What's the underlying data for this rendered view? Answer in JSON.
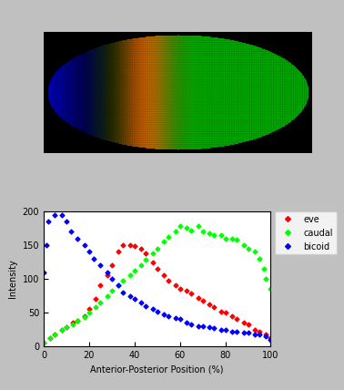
{
  "chart_data": {
    "type": "scatter",
    "x_label": "Anterior-Posterior Position (%)",
    "y_label": "Intensity",
    "xlim": [
      0,
      100
    ],
    "xticks": [
      0,
      20,
      40,
      60,
      80,
      100
    ],
    "ylim": [
      0,
      200
    ],
    "yticks": [
      0,
      50,
      100,
      150,
      200
    ],
    "legend": "upper right",
    "marker": "diamond",
    "series": [
      {
        "name": "eve",
        "color": "#ff0000",
        "x": [
          0,
          3,
          5,
          8,
          10,
          13,
          15,
          18,
          20,
          23,
          25,
          28,
          30,
          33,
          35,
          38,
          40,
          43,
          45,
          48,
          50,
          53,
          55,
          58,
          60,
          63,
          65,
          68,
          70,
          73,
          75,
          78,
          80,
          83,
          85,
          88,
          90,
          93,
          95,
          98,
          100
        ],
        "values": [
          5,
          12,
          18,
          25,
          28,
          35,
          38,
          45,
          55,
          70,
          90,
          105,
          120,
          140,
          150,
          150,
          148,
          145,
          138,
          125,
          115,
          105,
          98,
          90,
          85,
          82,
          78,
          72,
          68,
          62,
          58,
          52,
          50,
          45,
          40,
          35,
          32,
          25,
          22,
          18,
          12
        ]
      },
      {
        "name": "caudal",
        "color": "#00ff00",
        "x": [
          0,
          3,
          5,
          8,
          10,
          13,
          15,
          18,
          20,
          23,
          25,
          28,
          30,
          33,
          35,
          38,
          40,
          43,
          45,
          48,
          50,
          53,
          55,
          58,
          60,
          63,
          65,
          68,
          70,
          73,
          75,
          78,
          80,
          83,
          85,
          88,
          90,
          93,
          95,
          97,
          98,
          100
        ],
        "values": [
          5,
          12,
          18,
          25,
          28,
          33,
          38,
          43,
          50,
          58,
          65,
          75,
          82,
          90,
          98,
          105,
          112,
          120,
          128,
          138,
          145,
          155,
          162,
          170,
          178,
          175,
          172,
          178,
          170,
          168,
          165,
          165,
          160,
          160,
          158,
          150,
          145,
          140,
          130,
          115,
          100,
          85
        ]
      },
      {
        "name": "bicoid",
        "color": "#0000ff",
        "x": [
          0,
          1,
          2,
          5,
          8,
          10,
          12,
          15,
          18,
          20,
          22,
          25,
          28,
          30,
          33,
          35,
          38,
          40,
          43,
          45,
          48,
          50,
          53,
          55,
          58,
          60,
          63,
          65,
          68,
          70,
          73,
          75,
          78,
          80,
          83,
          85,
          88,
          90,
          93,
          95,
          98,
          100
        ],
        "values": [
          110,
          150,
          185,
          195,
          195,
          185,
          170,
          160,
          150,
          140,
          130,
          120,
          110,
          100,
          90,
          80,
          75,
          70,
          65,
          60,
          55,
          52,
          48,
          45,
          42,
          40,
          35,
          33,
          30,
          30,
          28,
          27,
          25,
          25,
          22,
          22,
          20,
          20,
          18,
          17,
          15,
          10
        ]
      }
    ]
  }
}
